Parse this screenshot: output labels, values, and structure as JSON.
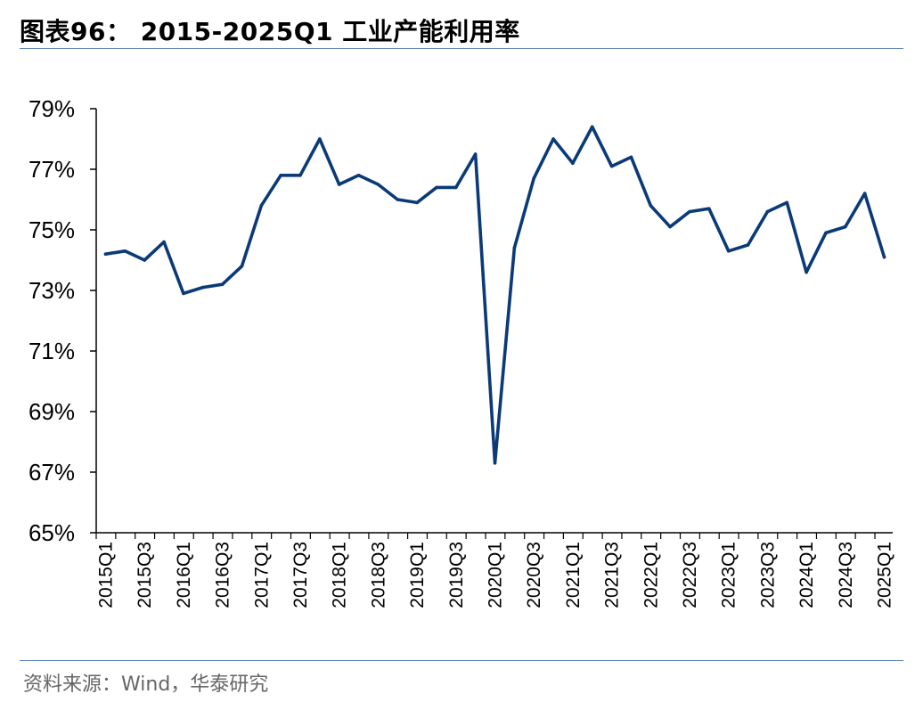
{
  "title": "图表96：  2015-2025Q1 工业产能利用率",
  "source": "资料来源：Wind，华泰研究",
  "colors": {
    "line": "#0b3a78",
    "rule": "#5a83b6",
    "axis": "#000000",
    "source_text": "#666666"
  },
  "chart_data": {
    "type": "line",
    "title": "",
    "xlabel": "",
    "ylabel": "",
    "ylim": [
      65,
      79
    ],
    "yticks": [
      65,
      67,
      69,
      71,
      73,
      75,
      77,
      79
    ],
    "ytick_labels": [
      "65%",
      "67%",
      "69%",
      "71%",
      "73%",
      "75%",
      "77%",
      "79%"
    ],
    "grid": false,
    "legend": "none",
    "categories": [
      "2015Q1",
      "2015Q2",
      "2015Q3",
      "2015Q4",
      "2016Q1",
      "2016Q2",
      "2016Q3",
      "2016Q4",
      "2017Q1",
      "2017Q2",
      "2017Q3",
      "2017Q4",
      "2018Q1",
      "2018Q2",
      "2018Q3",
      "2018Q4",
      "2019Q1",
      "2019Q2",
      "2019Q3",
      "2019Q4",
      "2020Q1",
      "2020Q2",
      "2020Q3",
      "2020Q4",
      "2021Q1",
      "2021Q2",
      "2021Q3",
      "2021Q4",
      "2022Q1",
      "2022Q2",
      "2022Q3",
      "2022Q4",
      "2023Q1",
      "2023Q2",
      "2023Q3",
      "2023Q4",
      "2024Q1",
      "2024Q2",
      "2024Q3",
      "2024Q4",
      "2025Q1"
    ],
    "xtick_labels": [
      "2015Q1",
      "2015Q3",
      "2016Q1",
      "2016Q3",
      "2017Q1",
      "2017Q3",
      "2018Q1",
      "2018Q3",
      "2019Q1",
      "2019Q3",
      "2020Q1",
      "2020Q3",
      "2021Q1",
      "2021Q3",
      "2022Q1",
      "2022Q3",
      "2023Q1",
      "2023Q3",
      "2024Q1",
      "2024Q3",
      "2025Q1"
    ],
    "series": [
      {
        "values": [
          74.2,
          74.3,
          74.0,
          74.6,
          72.9,
          73.1,
          73.2,
          73.8,
          75.8,
          76.8,
          76.8,
          78.0,
          76.5,
          76.8,
          76.5,
          76.0,
          75.9,
          76.4,
          76.4,
          77.5,
          67.3,
          74.4,
          76.7,
          78.0,
          77.2,
          78.4,
          77.1,
          77.4,
          75.8,
          75.1,
          75.6,
          75.7,
          74.3,
          74.5,
          75.6,
          75.9,
          73.6,
          74.9,
          75.1,
          76.2,
          74.1
        ]
      }
    ]
  }
}
